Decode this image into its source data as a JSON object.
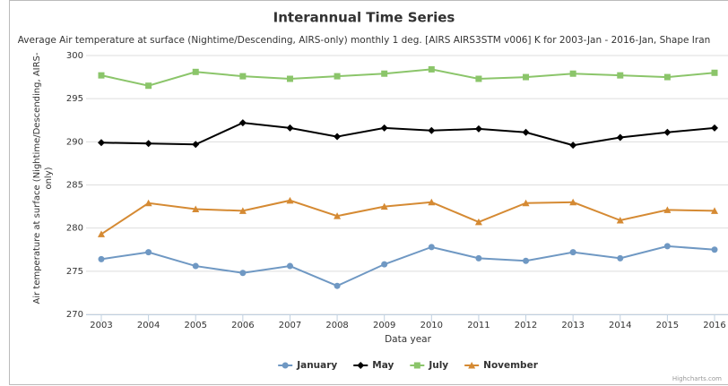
{
  "chart_data": {
    "type": "line",
    "title": "Interannual Time Series",
    "subtitle": "Average Air temperature at surface (Nightime/Descending, AIRS-only) monthly 1 deg. [AIRS AIRS3STM v006] K for 2003-Jan - 2016-Jan, Shape Iran",
    "y_label": "Air temperature at surface (Nightime/Descending, AIRS-only)",
    "x_label": "Data year",
    "credits": "Highcharts.com",
    "x": [
      2003,
      2004,
      2005,
      2006,
      2007,
      2008,
      2009,
      2010,
      2011,
      2012,
      2013,
      2014,
      2015,
      2016
    ],
    "xlim": [
      2003,
      2016
    ],
    "xticks": [
      2003,
      2004,
      2005,
      2006,
      2007,
      2008,
      2009,
      2010,
      2011,
      2012,
      2013,
      2014,
      2015,
      2016
    ],
    "ylim": [
      270,
      300
    ],
    "yticks": [
      270,
      275,
      280,
      285,
      290,
      295,
      300
    ],
    "grid": true,
    "legend": "bottom",
    "series": [
      {
        "name": "January",
        "color": "#6f98c3",
        "marker": "circle",
        "values": [
          276.4,
          277.2,
          275.6,
          274.8,
          275.6,
          273.3,
          275.8,
          277.8,
          276.5,
          276.2,
          277.2,
          276.5,
          277.9,
          277.5
        ]
      },
      {
        "name": "May",
        "color": "#000000",
        "marker": "diamond",
        "values": [
          289.9,
          289.8,
          289.7,
          292.2,
          291.6,
          290.6,
          291.6,
          291.3,
          291.5,
          291.1,
          289.6,
          290.5,
          291.1,
          291.6
        ]
      },
      {
        "name": "July",
        "color": "#8bc56a",
        "marker": "square",
        "values": [
          297.7,
          296.5,
          298.1,
          297.6,
          297.3,
          297.6,
          297.9,
          298.4,
          297.3,
          297.5,
          297.9,
          297.7,
          297.5,
          298.0
        ]
      },
      {
        "name": "November",
        "color": "#d58a33",
        "marker": "triangle",
        "values": [
          279.3,
          282.9,
          282.2,
          282.0,
          283.2,
          281.4,
          282.5,
          283.0,
          280.7,
          282.9,
          283.0,
          280.9,
          282.1,
          282.0
        ]
      }
    ]
  }
}
